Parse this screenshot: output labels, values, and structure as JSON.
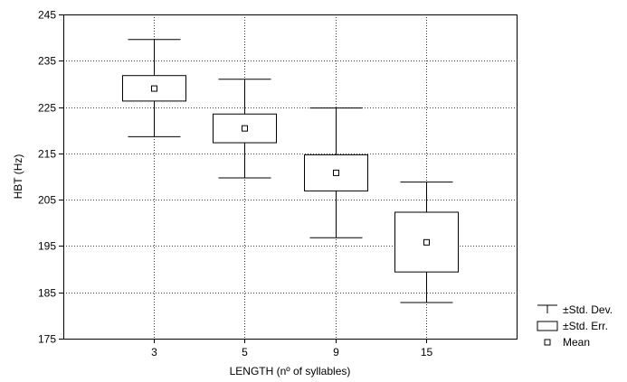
{
  "chart_data": {
    "type": "box",
    "title": "",
    "xlabel": "LENGTH (nº of syllables)",
    "ylabel": "HBT (Hz)",
    "ylim": [
      175,
      245
    ],
    "yticks": [
      "175",
      "185",
      "195",
      "205",
      "215",
      "225",
      "235",
      "245"
    ],
    "categories": [
      "3",
      "5",
      "9",
      "15"
    ],
    "grid": true,
    "series": [
      {
        "category": "3",
        "mean": 229.0,
        "se_low": 226.3,
        "se_high": 231.8,
        "sd_low": 218.6,
        "sd_high": 239.6
      },
      {
        "category": "5",
        "mean": 220.4,
        "se_low": 217.3,
        "se_high": 223.5,
        "sd_low": 209.7,
        "sd_high": 231.0
      },
      {
        "category": "9",
        "mean": 210.8,
        "se_low": 206.9,
        "se_high": 214.7,
        "sd_low": 196.8,
        "sd_high": 224.8
      },
      {
        "category": "15",
        "mean": 195.8,
        "se_low": 189.4,
        "se_high": 202.3,
        "sd_low": 182.8,
        "sd_high": 208.8
      }
    ],
    "legend": {
      "placement": "bottom-right",
      "items": [
        {
          "symbol": "whisker",
          "label": "±Std. Dev."
        },
        {
          "symbol": "box",
          "label": "±Std. Err."
        },
        {
          "symbol": "square",
          "label": "Mean"
        }
      ]
    }
  }
}
